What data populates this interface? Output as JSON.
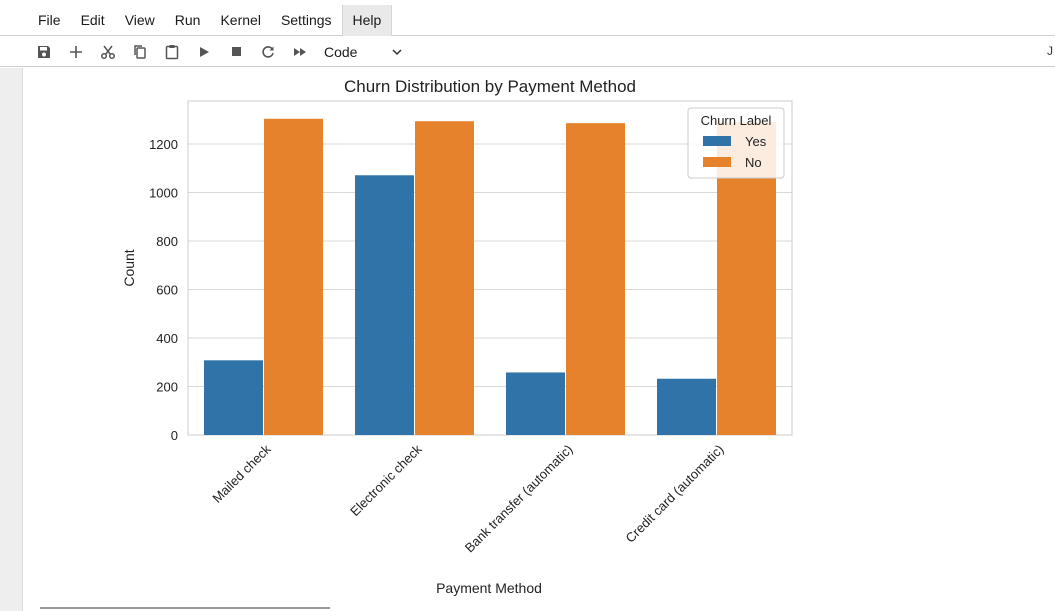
{
  "menubar": {
    "items": [
      "File",
      "Edit",
      "View",
      "Run",
      "Kernel",
      "Settings",
      "Help"
    ],
    "active": "Help"
  },
  "toolbar": {
    "icons": [
      "save-icon",
      "add-cell-icon",
      "cut-icon",
      "copy-icon",
      "paste-icon",
      "run-icon",
      "stop-icon",
      "restart-icon",
      "run-all-icon"
    ],
    "cell_type": "Code",
    "edge_text": "J"
  },
  "colors": {
    "yes": "#2f73a8",
    "no": "#e6812c",
    "grid": "#d9d9d9"
  },
  "chart_data": {
    "type": "bar",
    "title": "Churn Distribution by Payment Method",
    "xlabel": "Payment Method",
    "ylabel": "Count",
    "categories": [
      "Mailed check",
      "Electronic check",
      "Bank transfer (automatic)",
      "Credit card (automatic)"
    ],
    "series": [
      {
        "name": "Yes",
        "values": [
          308,
          1071,
          258,
          232
        ]
      },
      {
        "name": "No",
        "values": [
          1304,
          1294,
          1286,
          1290
        ]
      }
    ],
    "ylim": [
      0,
      1350
    ],
    "yticks": [
      0,
      200,
      400,
      600,
      800,
      1000,
      1200
    ],
    "legend_title": "Churn Label",
    "legend_position": "top-right",
    "grid": "horizontal"
  }
}
